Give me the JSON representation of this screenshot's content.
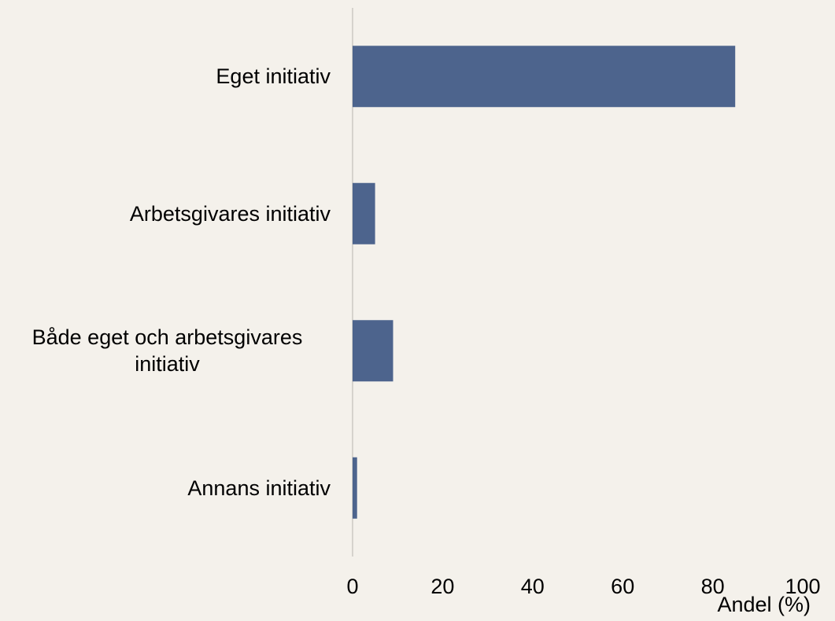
{
  "chart_data": {
    "type": "bar",
    "orientation": "horizontal",
    "categories": [
      "Eget initiativ",
      "Arbetsgivares initiativ",
      "Både eget och arbetsgivares initiativ",
      "Annans initiativ"
    ],
    "values": [
      85,
      5,
      9,
      1
    ],
    "color": "#4d648d",
    "xlabel": "Andel (%)",
    "xlim": [
      0,
      100
    ],
    "xticks": [
      0,
      20,
      40,
      60,
      80,
      100
    ],
    "grid": false
  }
}
